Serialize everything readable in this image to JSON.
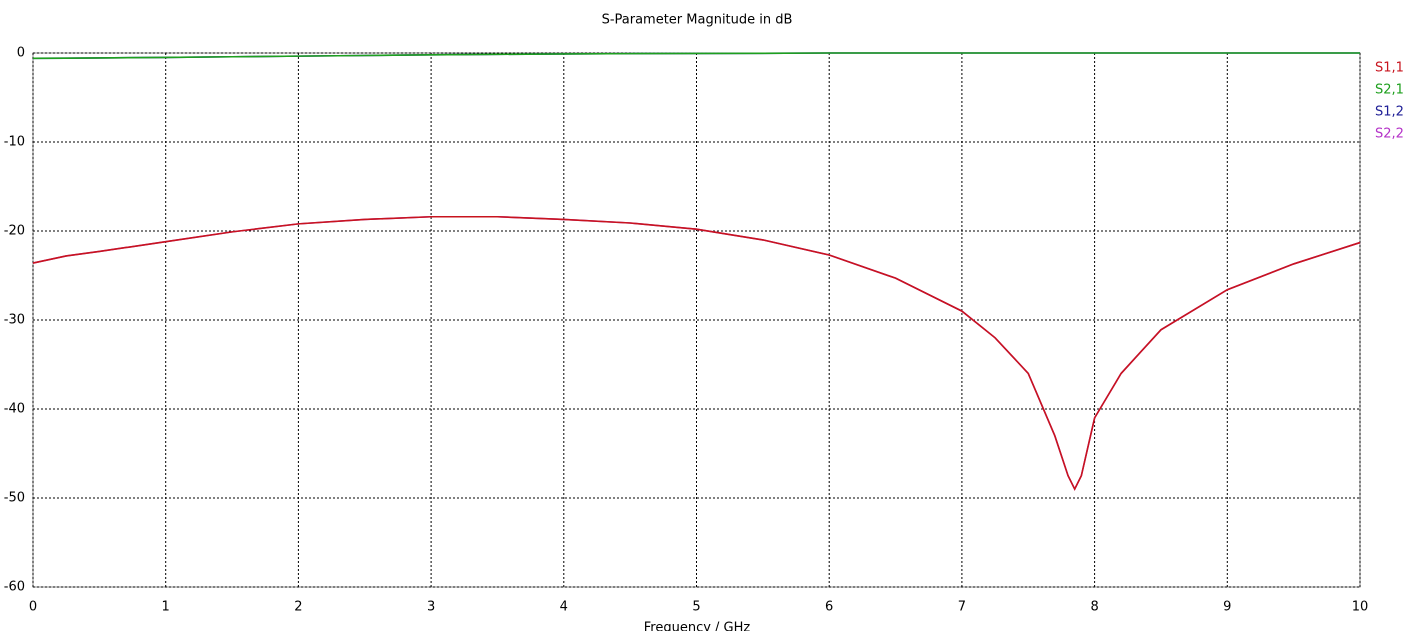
{
  "chart_data": {
    "type": "line",
    "title": "S-Parameter Magnitude in dB",
    "x_label": "Frequency / GHz",
    "x": [
      0,
      0.25,
      0.5,
      1,
      1.5,
      2,
      2.5,
      3,
      3.5,
      4,
      4.5,
      5,
      5.5,
      6,
      6.5,
      7,
      7.25,
      7.5,
      7.7,
      7.8,
      7.85,
      7.9,
      8,
      8.2,
      8.5,
      9,
      9.5,
      10
    ],
    "series": [
      {
        "name": "S1,1",
        "color": "#c8141e",
        "values": [
          -23.6,
          -22.8,
          -22.3,
          -21.2,
          -20.1,
          -19.2,
          -18.7,
          -18.4,
          -18.4,
          -18.7,
          -19.1,
          -19.8,
          -21.0,
          -22.7,
          -25.3,
          -29.0,
          -32.0,
          -36.0,
          -43.0,
          -47.5,
          -49.0,
          -47.5,
          -41.0,
          -36.0,
          -31.1,
          -26.6,
          -23.7,
          -21.3
        ]
      },
      {
        "name": "S2,1",
        "color": "#1ea01e",
        "values": [
          -0.6,
          -0.58,
          -0.55,
          -0.5,
          -0.42,
          -0.35,
          -0.28,
          -0.2,
          -0.15,
          -0.1,
          -0.07,
          -0.05,
          -0.03,
          0,
          0,
          0,
          0,
          0,
          0,
          0,
          0,
          0,
          0,
          0,
          0,
          0,
          0,
          0
        ]
      },
      {
        "name": "S1,2",
        "color": "#1e1e96",
        "values": [
          -0.6,
          -0.58,
          -0.55,
          -0.5,
          -0.42,
          -0.35,
          -0.28,
          -0.2,
          -0.15,
          -0.1,
          -0.07,
          -0.05,
          -0.03,
          0,
          0,
          0,
          0,
          0,
          0,
          0,
          0,
          0,
          0,
          0,
          0,
          0,
          0,
          0
        ]
      },
      {
        "name": "S2,2",
        "color": "#b432c8",
        "values": [
          -23.6,
          -22.8,
          -22.3,
          -21.2,
          -20.1,
          -19.2,
          -18.7,
          -18.4,
          -18.4,
          -18.7,
          -19.1,
          -19.8,
          -21.0,
          -22.7,
          -25.3,
          -29.0,
          -32.0,
          -36.0,
          -43.0,
          -47.5,
          -49.0,
          -47.5,
          -41.0,
          -36.0,
          -31.1,
          -26.6,
          -23.7,
          -21.3
        ]
      }
    ],
    "xlim": [
      0,
      10
    ],
    "xticks": [
      0,
      1,
      2,
      3,
      4,
      5,
      6,
      7,
      8,
      9,
      10
    ],
    "ylim": [
      -60,
      0
    ],
    "yticks": [
      0,
      -10,
      -20,
      -30,
      -40,
      -50,
      -60
    ],
    "grid": true
  }
}
